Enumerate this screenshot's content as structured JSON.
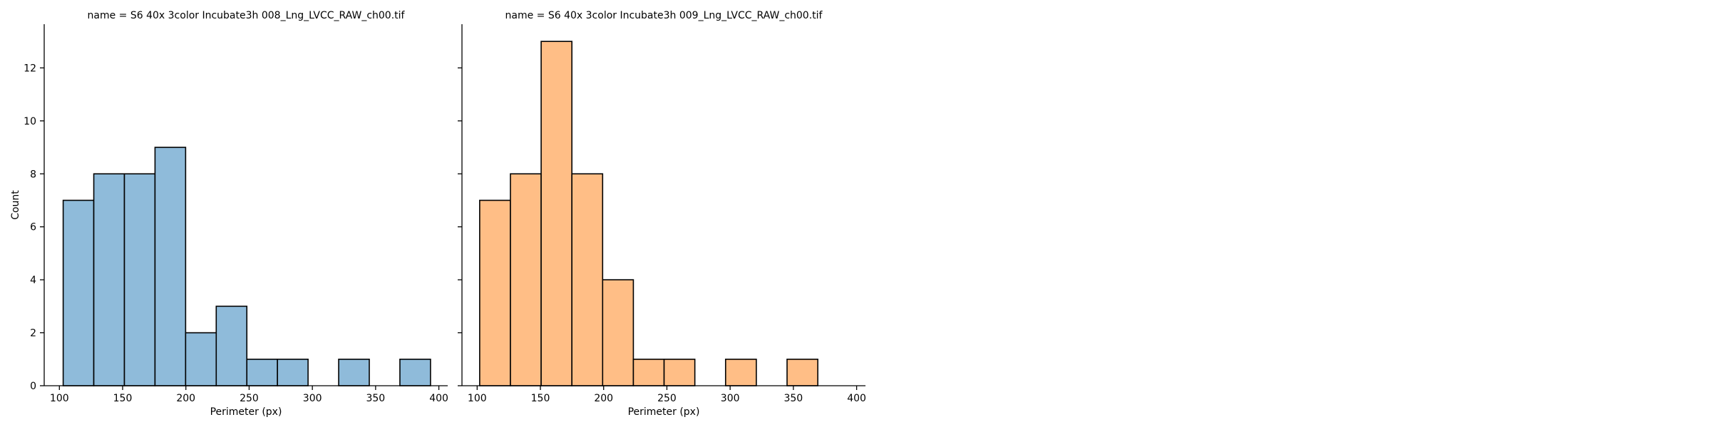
{
  "chart_data": [
    {
      "type": "bar",
      "title": "name = S6 40x 3color Incubate3h 008_Lng_LVCC_RAW_ch00.tif",
      "xlabel": "Perimeter (px)",
      "ylabel": "Count",
      "xlim": [
        88,
        407
      ],
      "ylim": [
        0,
        13.65
      ],
      "xticks": [
        100,
        150,
        200,
        250,
        300,
        350,
        400
      ],
      "yticks": [
        0,
        2,
        4,
        6,
        8,
        10,
        12
      ],
      "color": "#8fbbda",
      "edge_color": "#000000",
      "bins": [
        {
          "x0": 103,
          "x1": 127.2,
          "count": 7
        },
        {
          "x0": 127.2,
          "x1": 151.4,
          "count": 8
        },
        {
          "x0": 151.4,
          "x1": 175.6,
          "count": 8
        },
        {
          "x0": 175.6,
          "x1": 199.8,
          "count": 9
        },
        {
          "x0": 199.8,
          "x1": 224.0,
          "count": 2
        },
        {
          "x0": 224.0,
          "x1": 248.2,
          "count": 3
        },
        {
          "x0": 248.2,
          "x1": 272.4,
          "count": 1
        },
        {
          "x0": 272.4,
          "x1": 296.6,
          "count": 1
        },
        {
          "x0": 296.6,
          "x1": 320.8,
          "count": 0
        },
        {
          "x0": 320.8,
          "x1": 345.0,
          "count": 1
        },
        {
          "x0": 345.0,
          "x1": 369.2,
          "count": 0
        },
        {
          "x0": 369.2,
          "x1": 393.4,
          "count": 1
        }
      ]
    },
    {
      "type": "bar",
      "title": "name = S6 40x 3color Incubate3h 009_Lng_LVCC_RAW_ch00.tif",
      "xlabel": "Perimeter (px)",
      "ylabel": "",
      "xlim": [
        88,
        407
      ],
      "ylim": [
        0,
        13.65
      ],
      "xticks": [
        100,
        150,
        200,
        250,
        300,
        350,
        400
      ],
      "yticks": [
        0,
        2,
        4,
        6,
        8,
        10,
        12
      ],
      "color": "#ffbe86",
      "edge_color": "#000000",
      "bins": [
        {
          "x0": 102,
          "x1": 126.3,
          "count": 7
        },
        {
          "x0": 126.3,
          "x1": 150.6,
          "count": 8
        },
        {
          "x0": 150.6,
          "x1": 174.9,
          "count": 13
        },
        {
          "x0": 174.9,
          "x1": 199.2,
          "count": 8
        },
        {
          "x0": 199.2,
          "x1": 223.5,
          "count": 4
        },
        {
          "x0": 223.5,
          "x1": 247.8,
          "count": 1
        },
        {
          "x0": 247.8,
          "x1": 272.1,
          "count": 1
        },
        {
          "x0": 272.1,
          "x1": 296.4,
          "count": 0
        },
        {
          "x0": 296.4,
          "x1": 320.7,
          "count": 1
        },
        {
          "x0": 320.7,
          "x1": 345.0,
          "count": 0
        },
        {
          "x0": 345.0,
          "x1": 369.3,
          "count": 1
        }
      ]
    }
  ]
}
